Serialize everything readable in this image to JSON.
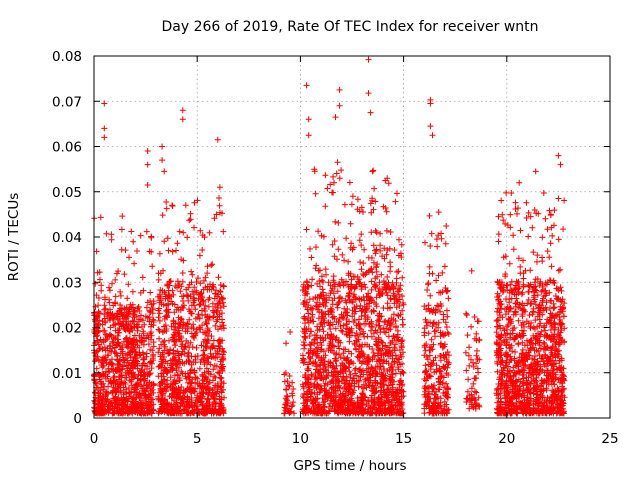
{
  "chart_data": {
    "type": "scatter",
    "title": "Day 266 of 2019, Rate Of TEC Index for receiver wntn",
    "xlabel": "GPS time / hours",
    "ylabel": "ROTI / TECUs",
    "xlim": [
      0,
      25
    ],
    "ylim": [
      0,
      0.08
    ],
    "x_ticks": [
      0,
      5,
      10,
      15,
      20,
      25
    ],
    "y_ticks": [
      0,
      0.01,
      0.02,
      0.03,
      0.04,
      0.05,
      0.06,
      0.07,
      0.08
    ],
    "x_tick_labels": [
      "0",
      "5",
      "10",
      "15",
      "20",
      "25"
    ],
    "y_tick_labels": [
      "0",
      "0.01",
      "0.02",
      "0.03",
      "0.04",
      "0.05",
      "0.06",
      "0.07",
      "0.08"
    ],
    "grid": true,
    "marker": "+",
    "color": "#ff0000",
    "series": [
      {
        "name": "ROTI",
        "description": "Dense clusters of ROTI samples (approximate)",
        "clusters": [
          {
            "x_range": [
              0.0,
              2.9
            ],
            "y_range": [
              0.001,
              0.025
            ],
            "count": 900
          },
          {
            "x_range": [
              0.0,
              2.9
            ],
            "y_range": [
              0.025,
              0.045
            ],
            "count": 60
          },
          {
            "x_range": [
              3.1,
              6.3
            ],
            "y_range": [
              0.001,
              0.03
            ],
            "count": 900
          },
          {
            "x_range": [
              3.1,
              6.3
            ],
            "y_range": [
              0.03,
              0.05
            ],
            "count": 60
          },
          {
            "x_range": [
              9.2,
              9.7
            ],
            "y_range": [
              0.001,
              0.01
            ],
            "count": 40
          },
          {
            "x_range": [
              10.1,
              15.0
            ],
            "y_range": [
              0.001,
              0.03
            ],
            "count": 1400
          },
          {
            "x_range": [
              10.1,
              15.0
            ],
            "y_range": [
              0.03,
              0.055
            ],
            "count": 150
          },
          {
            "x_range": [
              16.0,
              17.2
            ],
            "y_range": [
              0.001,
              0.025
            ],
            "count": 250
          },
          {
            "x_range": [
              16.0,
              17.2
            ],
            "y_range": [
              0.025,
              0.045
            ],
            "count": 30
          },
          {
            "x_range": [
              18.0,
              18.7
            ],
            "y_range": [
              0.002,
              0.025
            ],
            "count": 60
          },
          {
            "x_range": [
              19.5,
              22.8
            ],
            "y_range": [
              0.001,
              0.03
            ],
            "count": 1100
          },
          {
            "x_range": [
              19.5,
              22.8
            ],
            "y_range": [
              0.03,
              0.05
            ],
            "count": 80
          }
        ],
        "notable_points": [
          {
            "x": 0.5,
            "y": 0.0695
          },
          {
            "x": 0.5,
            "y": 0.064
          },
          {
            "x": 0.5,
            "y": 0.062
          },
          {
            "x": 2.6,
            "y": 0.059
          },
          {
            "x": 2.6,
            "y": 0.056
          },
          {
            "x": 2.6,
            "y": 0.0515
          },
          {
            "x": 3.3,
            "y": 0.06
          },
          {
            "x": 3.3,
            "y": 0.057
          },
          {
            "x": 3.4,
            "y": 0.0545
          },
          {
            "x": 4.3,
            "y": 0.068
          },
          {
            "x": 4.3,
            "y": 0.066
          },
          {
            "x": 6.0,
            "y": 0.0615
          },
          {
            "x": 6.1,
            "y": 0.051
          },
          {
            "x": 10.3,
            "y": 0.0735
          },
          {
            "x": 10.4,
            "y": 0.066
          },
          {
            "x": 10.4,
            "y": 0.0625
          },
          {
            "x": 11.9,
            "y": 0.0725
          },
          {
            "x": 11.9,
            "y": 0.069
          },
          {
            "x": 11.7,
            "y": 0.0665
          },
          {
            "x": 11.8,
            "y": 0.0565
          },
          {
            "x": 13.3,
            "y": 0.0792
          },
          {
            "x": 13.3,
            "y": 0.0718
          },
          {
            "x": 13.4,
            "y": 0.0675
          },
          {
            "x": 13.5,
            "y": 0.0545
          },
          {
            "x": 16.3,
            "y": 0.0703
          },
          {
            "x": 16.3,
            "y": 0.0695
          },
          {
            "x": 16.3,
            "y": 0.0645
          },
          {
            "x": 16.4,
            "y": 0.0625
          },
          {
            "x": 16.7,
            "y": 0.0455
          },
          {
            "x": 17.0,
            "y": 0.0335
          },
          {
            "x": 18.3,
            "y": 0.0325
          },
          {
            "x": 19.6,
            "y": 0.0445
          },
          {
            "x": 20.6,
            "y": 0.052
          },
          {
            "x": 21.4,
            "y": 0.0545
          },
          {
            "x": 22.5,
            "y": 0.058
          },
          {
            "x": 22.6,
            "y": 0.056
          },
          {
            "x": 22.5,
            "y": 0.0485
          },
          {
            "x": 9.5,
            "y": 0.019
          },
          {
            "x": 9.3,
            "y": 0.0165
          }
        ]
      }
    ]
  }
}
